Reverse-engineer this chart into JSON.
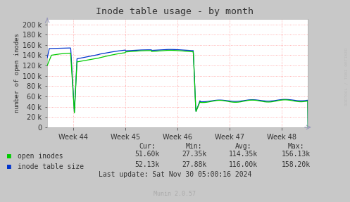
{
  "title": "Inode table usage - by month",
  "ylabel": "number of open inodes",
  "xtick_labels": [
    "Week 44",
    "Week 45",
    "Week 46",
    "Week 47",
    "Week 48"
  ],
  "ylim": [
    0,
    210000
  ],
  "yticks": [
    0,
    20000,
    40000,
    60000,
    80000,
    100000,
    120000,
    140000,
    160000,
    180000,
    200000
  ],
  "bg_color": "#c8c8c8",
  "plot_bg_color": "#ffffff",
  "grid_color": "#ff9999",
  "line_color_green": "#00cc00",
  "line_color_blue": "#0033cc",
  "legend_label_green": "open inodes",
  "legend_label_blue": "inode table size",
  "watermark": "RRDTOOL / TOBI OETIKER",
  "footer": "Munin 2.0.57",
  "stats_cur_green": "51.60k",
  "stats_min_green": "27.35k",
  "stats_avg_green": "114.35k",
  "stats_max_green": "156.13k",
  "stats_cur_blue": "52.13k",
  "stats_min_blue": "27.88k",
  "stats_avg_blue": "116.00k",
  "stats_max_blue": "158.20k",
  "last_update": "Last update: Sat Nov 30 05:00:16 2024"
}
